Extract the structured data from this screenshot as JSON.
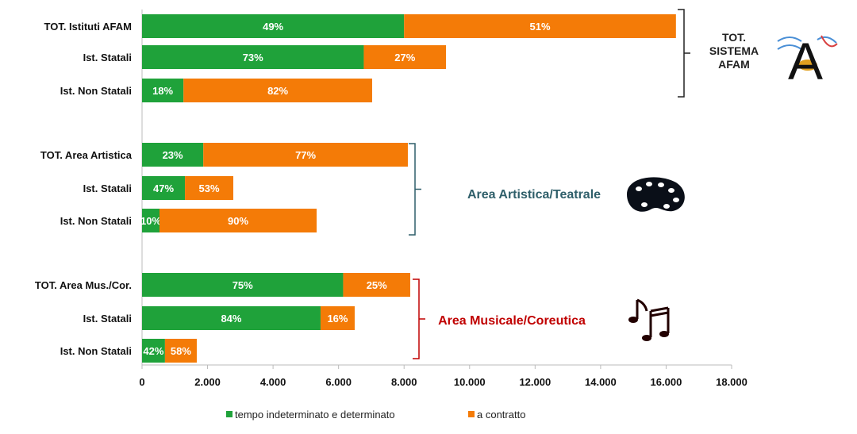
{
  "chart_data": {
    "type": "bar",
    "orientation": "horizontal",
    "stacked": true,
    "categories": [
      "TOT. Istituti AFAM",
      "Ist. Statali",
      "Ist. Non Statali",
      "TOT. Area Artistica",
      "Ist. Statali",
      "Ist. Non Statali",
      "TOT. Area Mus./Cor.",
      "Ist. Statali",
      "Ist. Non Statali"
    ],
    "series": [
      {
        "name": "tempo indeterminato e determinato",
        "color": "#1fa23a",
        "values": [
          8000,
          6770,
          1265,
          1870,
          1310,
          533,
          6140,
          5450,
          700
        ],
        "labels": [
          "49%",
          "73%",
          "18%",
          "23%",
          "47%",
          "10%",
          "75%",
          "84%",
          "42%"
        ]
      },
      {
        "name": "a contratto",
        "color": "#f47b07",
        "values": [
          8300,
          2510,
          5760,
          6245,
          1476,
          4797,
          2048,
          1042,
          971
        ],
        "labels": [
          "51%",
          "27%",
          "82%",
          "77%",
          "53%",
          "90%",
          "25%",
          "16%",
          "58%"
        ]
      }
    ],
    "xlim": [
      0,
      18000
    ],
    "xticks": [
      "0",
      "2.000",
      "4.000",
      "6.000",
      "8.000",
      "10.000",
      "12.000",
      "14.000",
      "16.000",
      "18.000"
    ],
    "grid": false,
    "legend": "bottom",
    "groups": [
      {
        "lines": [
          "TOT.",
          "SISTEMA",
          "AFAM"
        ],
        "color": "#222222",
        "icon": "afam-logo-icon"
      },
      {
        "label": "Area Artistica/Teatrale",
        "color": "#2f5f6a",
        "icon": "palette-icon"
      },
      {
        "label": "Area Musicale/Coreutica",
        "color": "#c00000",
        "icon": "music-notes-icon"
      }
    ]
  }
}
